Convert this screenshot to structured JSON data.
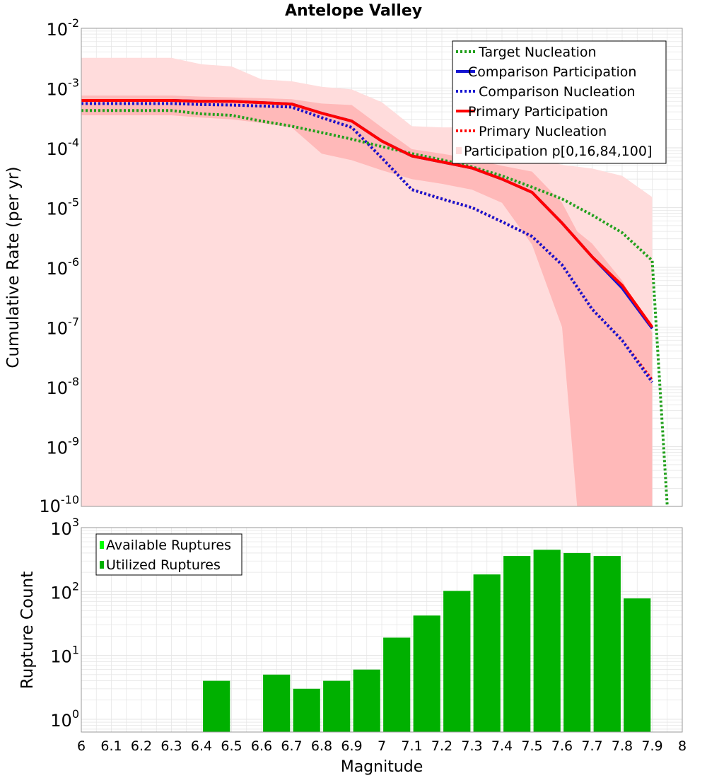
{
  "title": "Antelope Valley",
  "colors": {
    "target": "#22a01c",
    "comparison": "#1414d2",
    "primary": "#ff0000",
    "band_outer": "#ffdcdc",
    "band_inner": "#ffb9b9",
    "bar_utilized": "#00b000",
    "bar_available": "#00ff00",
    "grid": "#e6e6e6"
  },
  "chart_data": [
    {
      "type": "line",
      "title": "Antelope Valley",
      "xlabel": "",
      "ylabel": "Cumulative Rate (per yr)",
      "xlim": [
        6,
        8
      ],
      "ylim_exp": [
        -10,
        -2
      ],
      "yscale": "log",
      "grid": true,
      "legend_position": "top-right",
      "ytick_exponents": [
        -2,
        -3,
        -4,
        -5,
        -6,
        -7,
        -8,
        -9,
        -10
      ],
      "legend": [
        "Target Nucleation",
        "Comparison Participation",
        "Comparison Nucleation",
        "Primary Participation",
        "Primary Nucleation",
        "Participation p[0,16,84,100]"
      ],
      "x": [
        6.0,
        6.1,
        6.2,
        6.3,
        6.4,
        6.5,
        6.6,
        6.7,
        6.8,
        6.9,
        7.0,
        7.1,
        7.2,
        7.3,
        7.4,
        7.5,
        7.6,
        7.7,
        7.8,
        7.9
      ],
      "series": [
        {
          "name": "Target Nucleation",
          "style": "dotted",
          "color": "target",
          "x": [
            6.0,
            6.1,
            6.2,
            6.3,
            6.4,
            6.5,
            6.6,
            6.7,
            6.8,
            6.9,
            7.0,
            7.1,
            7.2,
            7.3,
            7.4,
            7.5,
            7.6,
            7.7,
            7.8,
            7.9,
            7.95
          ],
          "y": [
            0.00042,
            0.00042,
            0.00042,
            0.00042,
            0.00037,
            0.00035,
            0.00028,
            0.00023,
            0.00018,
            0.00014,
            0.000105,
            8e-05,
            6.3e-05,
            4.8e-05,
            3.4e-05,
            2.2e-05,
            1.4e-05,
            7.5e-06,
            3.8e-06,
            1.3e-06,
            1e-10
          ]
        },
        {
          "name": "Comparison Participation",
          "style": "solid",
          "color": "comparison",
          "y": [
            0.00062,
            0.00062,
            0.00062,
            0.00062,
            0.0006,
            0.0006,
            0.00057,
            0.00054,
            0.00038,
            0.00028,
            0.00013,
            7.3e-05,
            5.8e-05,
            4.6e-05,
            3e-05,
            1.8e-05,
            5.5e-06,
            1.5e-06,
            4.5e-07,
            9.5e-08
          ]
        },
        {
          "name": "Comparison Nucleation",
          "style": "dotted",
          "color": "comparison",
          "y": [
            0.00055,
            0.00055,
            0.00055,
            0.00055,
            0.00053,
            0.00052,
            0.0005,
            0.00048,
            0.00032,
            0.00022,
            6.8e-05,
            2e-05,
            1.4e-05,
            1e-05,
            5.8e-06,
            3.3e-06,
            1.1e-06,
            2e-07,
            6e-08,
            1.2e-08
          ]
        },
        {
          "name": "Primary Participation",
          "style": "solid",
          "color": "primary",
          "y": [
            0.00062,
            0.00062,
            0.00062,
            0.00062,
            0.0006,
            0.0006,
            0.00057,
            0.00054,
            0.00038,
            0.00028,
            0.00013,
            7.3e-05,
            5.8e-05,
            4.6e-05,
            3e-05,
            1.8e-05,
            5.5e-06,
            1.5e-06,
            5e-07,
            1e-07
          ]
        },
        {
          "name": "Primary Nucleation",
          "style": "dotted",
          "color": "primary",
          "y": [
            0.00055,
            0.00055,
            0.00055,
            0.00055,
            0.00053,
            0.00052,
            0.0005,
            0.00048,
            0.00032,
            0.00022,
            6.8e-05,
            2e-05,
            1.4e-05,
            1e-05,
            5.8e-06,
            3.3e-06,
            1.1e-06,
            2e-07,
            6e-08,
            1.3e-08
          ]
        }
      ],
      "bands": [
        {
          "name": "p0-p100",
          "color": "band_outer",
          "x": [
            6.0,
            6.1,
            6.2,
            6.3,
            6.4,
            6.5,
            6.6,
            6.7,
            6.8,
            6.9,
            7.0,
            7.1,
            7.2,
            7.3,
            7.4,
            7.5,
            7.6,
            7.7,
            7.8,
            7.9
          ],
          "low": [
            1e-10,
            1e-10,
            1e-10,
            1e-10,
            1e-10,
            1e-10,
            1e-10,
            1e-10,
            1e-10,
            1e-10,
            1e-10,
            1e-10,
            1e-10,
            1e-10,
            1e-10,
            1e-10,
            1e-10,
            1e-10,
            1e-10,
            1e-10
          ],
          "high": [
            0.0032,
            0.0032,
            0.0032,
            0.0032,
            0.0025,
            0.0023,
            0.0014,
            0.0013,
            0.00105,
            0.00095,
            0.00058,
            0.00023,
            0.00022,
            0.00022,
            0.00012,
            7.2e-05,
            5.2e-05,
            4.5e-05,
            3.4e-05,
            1.5e-05
          ]
        },
        {
          "name": "p16-p84",
          "color": "band_inner",
          "x": [
            6.0,
            6.1,
            6.2,
            6.3,
            6.4,
            6.5,
            6.6,
            6.7,
            6.8,
            6.9,
            7.0,
            7.1,
            7.2,
            7.3,
            7.4,
            7.5,
            7.6,
            7.65,
            7.7,
            7.8,
            7.9
          ],
          "low": [
            0.00035,
            0.00035,
            0.00035,
            0.00035,
            0.00032,
            0.0003,
            0.00026,
            0.00022,
            8e-05,
            6.2e-05,
            4.2e-05,
            3e-05,
            2.5e-05,
            2e-05,
            1.2e-05,
            2.4e-06,
            1e-07,
            1e-10,
            1e-10,
            1e-10,
            1e-10
          ],
          "high": [
            0.00075,
            0.00075,
            0.00075,
            0.00075,
            0.00072,
            0.0007,
            0.00068,
            0.00065,
            0.00055,
            0.00052,
            0.00022,
            9.5e-05,
            8e-05,
            6.5e-05,
            5e-05,
            4e-05,
            1.2e-05,
            4e-06,
            2.5e-06,
            6e-07,
            8e-08
          ]
        }
      ]
    },
    {
      "type": "bar",
      "xlabel": "Magnitude",
      "ylabel": "Rupture Count",
      "xlim": [
        6,
        8
      ],
      "ylim_exp": [
        -0.2,
        3
      ],
      "yscale": "log",
      "grid": true,
      "legend_position": "top-left",
      "ytick_exponents": [
        3,
        2,
        1,
        0
      ],
      "xtick_labels": [
        "6",
        "6.1",
        "6.2",
        "6.3",
        "6.4",
        "6.5",
        "6.6",
        "6.7",
        "6.8",
        "6.9",
        "7",
        "7.1",
        "7.2",
        "7.3",
        "7.4",
        "7.5",
        "7.6",
        "7.7",
        "7.8",
        "7.9",
        "8"
      ],
      "legend": [
        "Available Ruptures",
        "Utilized Ruptures"
      ],
      "bars": [
        {
          "x": 6.45,
          "value": 4
        },
        {
          "x": 6.65,
          "value": 5
        },
        {
          "x": 6.75,
          "value": 3
        },
        {
          "x": 6.85,
          "value": 4
        },
        {
          "x": 6.95,
          "value": 6
        },
        {
          "x": 7.05,
          "value": 19
        },
        {
          "x": 7.15,
          "value": 42
        },
        {
          "x": 7.25,
          "value": 102
        },
        {
          "x": 7.35,
          "value": 185
        },
        {
          "x": 7.45,
          "value": 360
        },
        {
          "x": 7.55,
          "value": 450
        },
        {
          "x": 7.65,
          "value": 400
        },
        {
          "x": 7.75,
          "value": 360
        },
        {
          "x": 7.85,
          "value": 78
        }
      ]
    }
  ]
}
